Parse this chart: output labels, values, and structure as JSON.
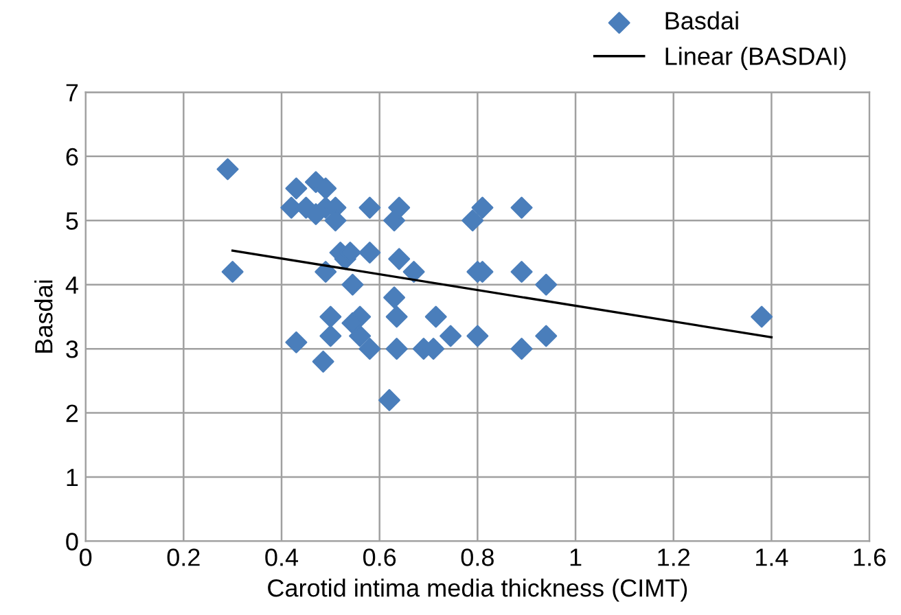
{
  "chart_data": {
    "type": "scatter",
    "xlabel": "Carotid intima media thickness (CIMT)",
    "ylabel": "Basdai",
    "xlim": [
      0,
      1.6
    ],
    "xticks": [
      0,
      0.2,
      0.4,
      0.6,
      0.8,
      1,
      1.2,
      1.4,
      1.6
    ],
    "ylim": [
      0,
      7
    ],
    "yticks": [
      0,
      1,
      2,
      3,
      4,
      5,
      6,
      7
    ],
    "grid": true,
    "legend": "top right",
    "marker": "diamond",
    "series": [
      {
        "name": "Basdai",
        "color": "#4a7ebb",
        "x": [
          0.29,
          0.3,
          0.43,
          0.42,
          0.45,
          0.47,
          0.47,
          0.49,
          0.49,
          0.51,
          0.51,
          0.52,
          0.53,
          0.54,
          0.58,
          0.58,
          0.545,
          0.49,
          0.63,
          0.64,
          0.64,
          0.67,
          0.63,
          0.79,
          0.81,
          0.89,
          0.8,
          0.81,
          0.89,
          0.94,
          1.38,
          0.5,
          0.56,
          0.545,
          0.635,
          0.715,
          0.5,
          0.56,
          0.43,
          0.58,
          0.635,
          0.69,
          0.71,
          0.745,
          0.8,
          0.89,
          0.94,
          0.485,
          0.62
        ],
        "values": [
          5.8,
          4.2,
          5.5,
          5.2,
          5.2,
          5.1,
          5.6,
          5.5,
          5.2,
          5.2,
          5.0,
          4.5,
          4.4,
          4.5,
          5.2,
          4.5,
          4.0,
          4.2,
          5.0,
          5.2,
          4.4,
          4.2,
          3.8,
          5.0,
          5.2,
          5.2,
          4.2,
          4.2,
          4.2,
          4.0,
          3.5,
          3.5,
          3.5,
          3.4,
          3.5,
          3.5,
          3.2,
          3.2,
          3.1,
          3.0,
          3.0,
          3.0,
          3.0,
          3.2,
          3.2,
          3.0,
          3.2,
          2.8,
          2.2
        ]
      },
      {
        "name": "Linear (BASDAI)",
        "type": "line",
        "color": "#000000",
        "line_style": "solid",
        "marker": "none",
        "x": [
          0.3,
          1.4
        ],
        "values": [
          4.53,
          3.18
        ]
      }
    ]
  }
}
